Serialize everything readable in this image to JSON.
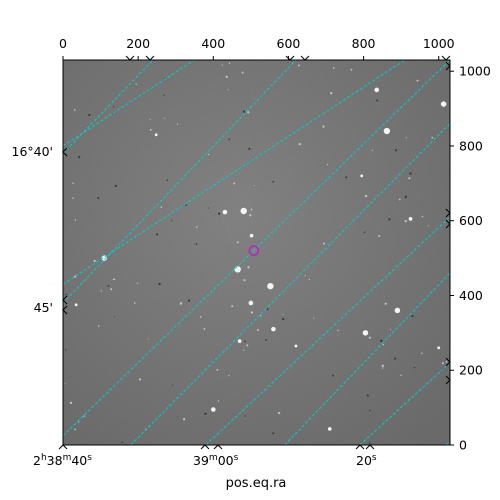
{
  "figure": {
    "title": "",
    "x_world_label": "pos.eq.ra",
    "pixel_x_ticks": [
      "0",
      "200",
      "400",
      "600",
      "800",
      "1000"
    ],
    "pixel_y_ticks": [
      "0",
      "200",
      "400",
      "600",
      "800",
      "1000"
    ],
    "dec_ticks": [
      "16°40'",
      "45'"
    ],
    "ra_ticks": [
      {
        "h": "2",
        "m": "38",
        "s": "40",
        "full": true
      },
      {
        "m": "39",
        "s": "00",
        "full": false
      },
      {
        "s": "20",
        "full": false
      }
    ],
    "grid_color": "#00d0d0",
    "marker_color": "#c020c0",
    "sky_color": "#7a7a7a"
  },
  "chart_data": {
    "type": "scatter",
    "x_range": [
      0,
      1030
    ],
    "y_range": [
      0,
      1030
    ],
    "series": [
      {
        "values": [
          [
            248,
            830
          ],
          [
            431,
            623
          ],
          [
            481,
            626
          ],
          [
            502,
            560
          ],
          [
            110,
            500
          ],
          [
            35,
            375
          ],
          [
            500,
            380
          ],
          [
            552,
            425
          ],
          [
            470,
            278
          ],
          [
            805,
            300
          ],
          [
            1000,
            260
          ],
          [
            400,
            95
          ],
          [
            862,
            840
          ],
          [
            925,
            605
          ],
          [
            1013,
            912
          ],
          [
            795,
            720
          ],
          [
            835,
            950
          ],
          [
            465,
            470
          ],
          [
            710,
            43
          ],
          [
            890,
            360
          ],
          [
            620,
            265
          ],
          [
            560,
            310
          ]
        ]
      }
    ],
    "target_marker": [
      508,
      520
    ],
    "grid": true
  }
}
